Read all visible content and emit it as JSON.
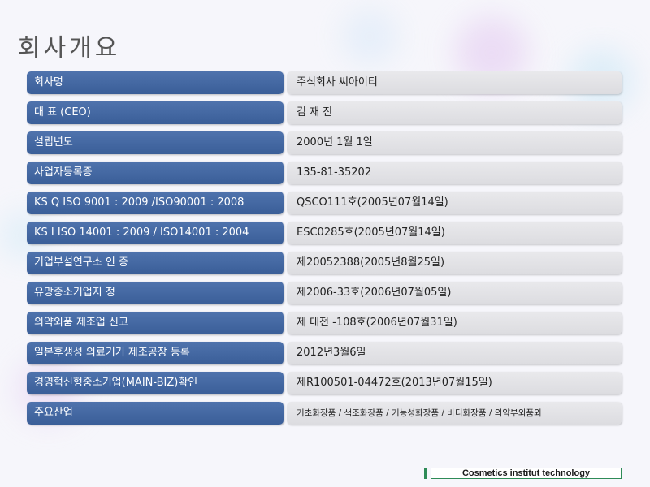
{
  "title": "회사개요",
  "rows": [
    {
      "label": "회사명",
      "value": "주식회사 씨아이티"
    },
    {
      "label": "대 표 (CEO)",
      "value": "김 재 진"
    },
    {
      "label": "설립년도",
      "value": "2000년 1월 1일"
    },
    {
      "label": "사업자등록증",
      "value": "135-81-35202"
    },
    {
      "label": "KS Q ISO 9001 : 2009 /ISO90001 : 2008",
      "value": "QSCO111호(2005년07월14일)"
    },
    {
      "label": "KS I ISO 14001 : 2009 / ISO14001 : 2004",
      "value": "ESC0285호(2005년07월14일)"
    },
    {
      "label": "기업부설연구소 인 증",
      "value": "제20052388(2005년8월25일)"
    },
    {
      "label": "유망중소기업지 정",
      "value": "제2006-33호(2006년07월05일)"
    },
    {
      "label": "의약외품 제조업 신고",
      "value": "제 대전 -108호(2006년07월31일)"
    },
    {
      "label": "일본후생성 의료기기 제조공장 등록",
      "value": "2012년3월6일"
    },
    {
      "label": "경영혁신형중소기업(MAIN-BIZ)확인",
      "value": "제R100501-04472호(2013년07월15일)"
    },
    {
      "label": "주요산업",
      "value": "기초화장품 / 색조화장품 / 기능성화장품 / 바디화장품 / 의약부외품외"
    }
  ],
  "footer": "Cosmetics  institut technology",
  "colors": {
    "label_bg": "#4169a8",
    "value_bg": "#e2e2e6",
    "footer_accent": "#2e8b57"
  }
}
